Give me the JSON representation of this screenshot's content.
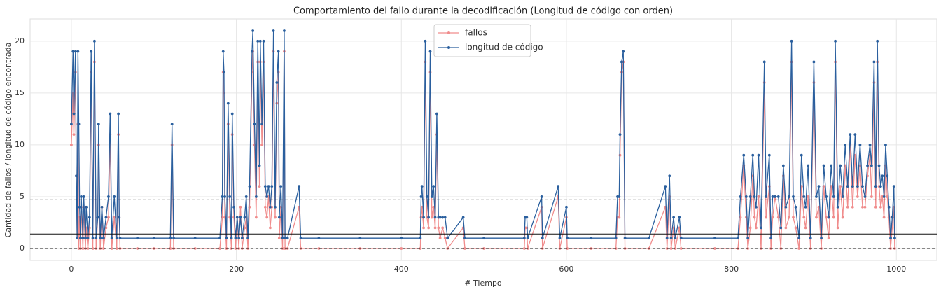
{
  "chart_data": {
    "type": "line",
    "title": "Comportamiento del fallo durante la decodificación (Longitud de código con orden)",
    "xlabel": "# Tiempo",
    "ylabel": "Cantidad de fallos / longitud de código encontrada",
    "xlim": [
      -50,
      1049
    ],
    "ylim": [
      -1.15,
      22.15
    ],
    "xticks": [
      0,
      200,
      400,
      600,
      800,
      1000
    ],
    "yticks": [
      0,
      5,
      10,
      15,
      20
    ],
    "grid": true,
    "legend": "upper center",
    "reference_lines": [
      {
        "value": 0,
        "style": "dashed"
      },
      {
        "value": 4.7,
        "style": "dashed"
      },
      {
        "value": 1.4,
        "style": "solid"
      }
    ],
    "x": [
      0,
      2,
      3,
      5,
      6,
      7,
      8,
      9,
      10,
      11,
      12,
      14,
      15,
      17,
      18,
      20,
      22,
      24,
      26,
      28,
      30,
      32,
      33,
      35,
      37,
      39,
      42,
      45,
      47,
      49,
      52,
      55,
      57,
      58,
      59,
      80,
      100,
      120,
      122,
      124,
      150,
      180,
      183,
      184,
      185,
      186,
      188,
      190,
      192,
      194,
      195,
      197,
      199,
      201,
      203,
      205,
      207,
      210,
      212,
      214,
      216,
      219,
      220,
      222,
      224,
      226,
      228,
      229,
      231,
      233,
      235,
      237,
      239,
      241,
      243,
      245,
      247,
      249,
      251,
      252,
      254,
      256,
      258,
      259,
      262,
      276,
      278,
      300,
      350,
      400,
      423,
      424,
      425,
      427,
      429,
      431,
      433,
      435,
      437,
      439,
      441,
      443,
      445,
      447,
      450,
      453,
      456,
      475,
      477,
      500,
      549,
      550,
      552,
      553,
      570,
      571,
      590,
      592,
      600,
      601,
      630,
      660,
      662,
      664,
      665,
      667,
      669,
      671,
      700,
      720,
      722,
      725,
      727,
      730,
      732,
      737,
      739,
      780,
      808,
      811,
      815,
      818,
      820,
      823,
      826,
      828,
      830,
      833,
      836,
      840,
      842,
      846,
      848,
      850,
      853,
      857,
      860,
      863,
      866,
      870,
      873,
      875,
      878,
      882,
      885,
      888,
      890,
      893,
      896,
      900,
      903,
      906,
      909,
      912,
      915,
      918,
      921,
      924,
      926,
      929,
      932,
      935,
      938,
      941,
      944,
      947,
      950,
      953,
      956,
      959,
      962,
      965,
      968,
      970,
      973,
      975,
      977,
      979,
      981,
      983,
      985,
      987,
      989,
      991,
      993,
      995,
      997,
      998
    ],
    "series": [
      {
        "name": "fallos",
        "color": "#f08c8c",
        "values": [
          10,
          15,
          11,
          17,
          7,
          1,
          12,
          0,
          3,
          0,
          4,
          0,
          4,
          0,
          2,
          0,
          2,
          17,
          0,
          18,
          0,
          3,
          10,
          0,
          4,
          0,
          2,
          3,
          11,
          0,
          3,
          0,
          11,
          3,
          0,
          0,
          0,
          0,
          10,
          0,
          0,
          0,
          3,
          17,
          15,
          3,
          0,
          12,
          3,
          0,
          11,
          3,
          0,
          3,
          0,
          4,
          0,
          2,
          3,
          0,
          4,
          17,
          19,
          10,
          3,
          18,
          6,
          18,
          10,
          18,
          4,
          3,
          5,
          2,
          4,
          19,
          3,
          14,
          17,
          1,
          4,
          0,
          19,
          0,
          0,
          4,
          0,
          0,
          0,
          0,
          0,
          3,
          4,
          2,
          18,
          3,
          2,
          17,
          3,
          4,
          2,
          11,
          2,
          1,
          2,
          1,
          0,
          2,
          0,
          0,
          0,
          2,
          2,
          0,
          4,
          0,
          5,
          0,
          3,
          0,
          0,
          0,
          3,
          3,
          9,
          17,
          18,
          0,
          0,
          4,
          0,
          5,
          0,
          2,
          0,
          2,
          0,
          0,
          0,
          3,
          8,
          3,
          0,
          2,
          7,
          3,
          2,
          5,
          0,
          16,
          3,
          6,
          0,
          3,
          5,
          3,
          0,
          7,
          2,
          3,
          18,
          3,
          2,
          0,
          6,
          3,
          2,
          5,
          0,
          16,
          3,
          4,
          0,
          6,
          3,
          1,
          6,
          3,
          18,
          2,
          6,
          3,
          8,
          4,
          10,
          4,
          9,
          5,
          8,
          4,
          4,
          7,
          9,
          5,
          16,
          4,
          18,
          6,
          4,
          5,
          3,
          8,
          5,
          3,
          0,
          2,
          4,
          0
        ]
      },
      {
        "name": "longitud de código",
        "color": "#2a5f9e",
        "values": [
          12,
          19,
          13,
          19,
          7,
          1,
          19,
          12,
          4,
          1,
          5,
          1,
          5,
          1,
          4,
          1,
          3,
          19,
          1,
          20,
          1,
          3,
          12,
          1,
          4,
          1,
          3,
          5,
          13,
          1,
          5,
          1,
          13,
          3,
          1,
          1,
          1,
          1,
          12,
          1,
          1,
          1,
          5,
          19,
          17,
          5,
          1,
          14,
          5,
          1,
          13,
          4,
          1,
          3,
          1,
          3,
          1,
          3,
          5,
          1,
          6,
          19,
          21,
          12,
          5,
          20,
          8,
          20,
          12,
          20,
          6,
          5,
          6,
          4,
          6,
          21,
          4,
          16,
          19,
          3,
          6,
          1,
          21,
          1,
          1,
          6,
          1,
          1,
          1,
          1,
          1,
          5,
          6,
          3,
          20,
          5,
          3,
          19,
          5,
          6,
          3,
          13,
          3,
          3,
          3,
          3,
          1,
          3,
          1,
          1,
          1,
          3,
          3,
          1,
          5,
          1,
          6,
          1,
          4,
          1,
          1,
          1,
          5,
          5,
          11,
          18,
          19,
          1,
          1,
          6,
          1,
          7,
          1,
          3,
          1,
          3,
          1,
          1,
          1,
          5,
          9,
          5,
          1,
          5,
          9,
          5,
          4,
          9,
          2,
          18,
          5,
          9,
          1,
          5,
          5,
          5,
          2,
          8,
          4,
          5,
          20,
          5,
          4,
          1,
          9,
          5,
          4,
          8,
          1,
          18,
          5,
          6,
          1,
          8,
          5,
          3,
          8,
          5,
          20,
          4,
          8,
          5,
          10,
          6,
          11,
          6,
          11,
          6,
          10,
          6,
          5,
          8,
          10,
          8,
          18,
          6,
          20,
          8,
          6,
          7,
          5,
          10,
          7,
          4,
          1,
          3,
          6,
          1
        ]
      }
    ]
  }
}
